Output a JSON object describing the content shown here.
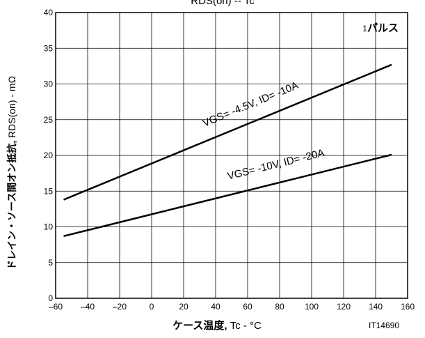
{
  "chart_data": {
    "type": "line",
    "title": "RDS(on) -- Tc",
    "xlabel_bold": "ケース温度,",
    "xlabel_rest": "Tc - °C",
    "ylabel_bold": "ドレイン・ソース間オン抵抗,",
    "ylabel_rest": "RDS(on) - mΩ",
    "corner_note_num": "1",
    "corner_note_text": "パルス",
    "figure_id": "IT14690",
    "xlim": [
      -60,
      160
    ],
    "ylim": [
      0,
      40
    ],
    "xticks": [
      -60,
      -40,
      -20,
      0,
      20,
      40,
      60,
      80,
      100,
      120,
      140,
      160
    ],
    "yticks": [
      0,
      5,
      10,
      15,
      20,
      25,
      30,
      35,
      40
    ],
    "xtick_labels": [
      "–60",
      "–40",
      "–20",
      "0",
      "20",
      "40",
      "60",
      "80",
      "100",
      "120",
      "140",
      "160"
    ],
    "ytick_labels": [
      "0",
      "5",
      "10",
      "15",
      "20",
      "25",
      "30",
      "35",
      "40"
    ],
    "grid": true,
    "series": [
      {
        "label": "VGS= -4.5V, ID= -10A",
        "x": [
          -55,
          150
        ],
        "y": [
          13.8,
          32.7
        ],
        "label_x": 33,
        "label_y": 24.0
      },
      {
        "label": "VGS= -10V, ID= -20A",
        "x": [
          -55,
          150
        ],
        "y": [
          8.7,
          20.1
        ],
        "label_x": 48,
        "label_y": 16.6
      }
    ]
  }
}
